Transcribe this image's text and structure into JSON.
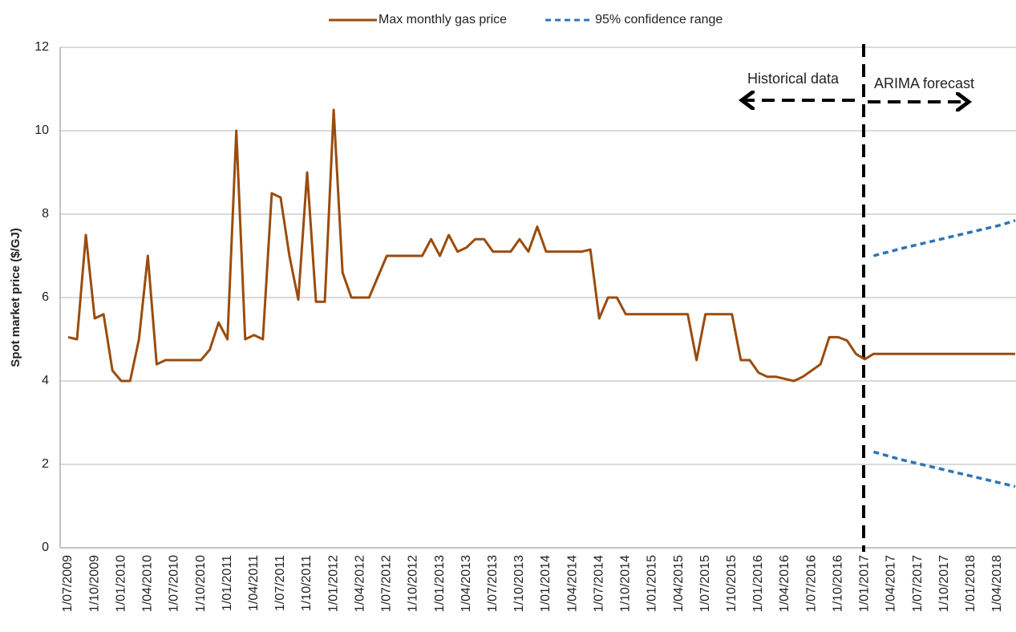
{
  "chart_data": {
    "type": "line",
    "y_label": "Spot market price ($/GJ)",
    "categories": [
      "1/07/2009",
      null,
      null,
      "1/10/2009",
      null,
      null,
      "1/01/2010",
      null,
      null,
      "1/04/2010",
      null,
      null,
      "1/07/2010",
      null,
      null,
      "1/10/2010",
      null,
      null,
      "1/01/2011",
      null,
      null,
      "1/04/2011",
      null,
      null,
      "1/07/2011",
      null,
      null,
      "1/10/2011",
      null,
      null,
      "1/01/2012",
      null,
      null,
      "1/04/2012",
      null,
      null,
      "1/07/2012",
      null,
      null,
      "1/10/2012",
      null,
      null,
      "1/01/2013",
      null,
      null,
      "1/04/2013",
      null,
      null,
      "1/07/2013",
      null,
      null,
      "1/10/2013",
      null,
      null,
      "1/01/2014",
      null,
      null,
      "1/04/2014",
      null,
      null,
      "1/07/2014",
      null,
      null,
      "1/10/2014",
      null,
      null,
      "1/01/2015",
      null,
      null,
      "1/04/2015",
      null,
      null,
      "1/07/2015",
      null,
      null,
      "1/10/2015",
      null,
      null,
      "1/01/2016",
      null,
      null,
      "1/04/2016",
      null,
      null,
      "1/07/2016",
      null,
      null,
      "1/10/2016",
      null,
      null,
      "1/01/2017",
      null,
      null,
      "1/04/2017",
      null,
      null,
      "1/07/2017",
      null,
      null,
      "1/10/2017",
      null,
      null,
      "1/01/2018",
      null,
      null,
      "1/04/2018",
      null,
      null
    ],
    "series": [
      {
        "name": "Max monthly gas price",
        "color": "#9a4c0e",
        "dashed": false,
        "values": [
          5.05,
          5.0,
          7.5,
          5.5,
          5.6,
          4.25,
          4.0,
          4.0,
          5.0,
          7.0,
          4.4,
          4.5,
          4.5,
          4.5,
          4.5,
          4.5,
          4.75,
          5.4,
          5.0,
          10.0,
          5.0,
          5.1,
          5.0,
          8.5,
          8.4,
          7.0,
          5.95,
          9.0,
          5.9,
          5.9,
          10.5,
          6.6,
          6.0,
          6.0,
          6.0,
          6.5,
          7.0,
          7.0,
          7.0,
          7.0,
          7.0,
          7.4,
          7.0,
          7.5,
          7.1,
          7.2,
          7.4,
          7.4,
          7.1,
          7.1,
          7.1,
          7.4,
          7.1,
          7.7,
          7.1,
          7.1,
          7.1,
          7.1,
          7.1,
          7.15,
          5.5,
          6.0,
          6.0,
          5.6,
          5.6,
          5.6,
          5.6,
          5.6,
          5.6,
          5.6,
          5.6,
          4.5,
          5.6,
          5.6,
          5.6,
          5.6,
          4.5,
          4.5,
          4.2,
          4.1,
          4.1,
          4.05,
          4.0,
          4.1,
          4.25,
          4.4,
          5.05,
          5.05,
          4.97,
          4.65,
          4.52,
          4.65,
          4.65,
          4.65,
          4.65,
          4.65,
          4.65,
          4.65,
          4.65,
          4.65,
          4.65,
          4.65,
          4.65,
          4.65,
          4.65,
          4.65,
          4.65,
          4.65
        ]
      },
      {
        "name": "95% confidence range",
        "color": "#2e75b6",
        "dashed": true,
        "values": [
          null,
          null,
          null,
          null,
          null,
          null,
          null,
          null,
          null,
          null,
          null,
          null,
          null,
          null,
          null,
          null,
          null,
          null,
          null,
          null,
          null,
          null,
          null,
          null,
          null,
          null,
          null,
          null,
          null,
          null,
          null,
          null,
          null,
          null,
          null,
          null,
          null,
          null,
          null,
          null,
          null,
          null,
          null,
          null,
          null,
          null,
          null,
          null,
          null,
          null,
          null,
          null,
          null,
          null,
          null,
          null,
          null,
          null,
          null,
          null,
          null,
          null,
          null,
          null,
          null,
          null,
          null,
          null,
          null,
          null,
          null,
          null,
          null,
          null,
          null,
          null,
          null,
          null,
          null,
          null,
          null,
          null,
          null,
          null,
          null,
          null,
          null,
          null,
          null,
          null,
          null,
          7.0,
          7.06,
          7.11,
          7.17,
          7.22,
          7.27,
          7.32,
          7.37,
          7.42,
          7.47,
          7.52,
          7.57,
          7.62,
          7.67,
          7.72,
          7.78,
          7.85
        ]
      },
      {
        "color": "#2e75b6",
        "dashed": true,
        "values": [
          null,
          null,
          null,
          null,
          null,
          null,
          null,
          null,
          null,
          null,
          null,
          null,
          null,
          null,
          null,
          null,
          null,
          null,
          null,
          null,
          null,
          null,
          null,
          null,
          null,
          null,
          null,
          null,
          null,
          null,
          null,
          null,
          null,
          null,
          null,
          null,
          null,
          null,
          null,
          null,
          null,
          null,
          null,
          null,
          null,
          null,
          null,
          null,
          null,
          null,
          null,
          null,
          null,
          null,
          null,
          null,
          null,
          null,
          null,
          null,
          null,
          null,
          null,
          null,
          null,
          null,
          null,
          null,
          null,
          null,
          null,
          null,
          null,
          null,
          null,
          null,
          null,
          null,
          null,
          null,
          null,
          null,
          null,
          null,
          null,
          null,
          null,
          null,
          null,
          null,
          null,
          2.3,
          2.24,
          2.18,
          2.12,
          2.07,
          2.02,
          1.97,
          1.92,
          1.87,
          1.82,
          1.77,
          1.72,
          1.67,
          1.62,
          1.57,
          1.52,
          1.47
        ]
      }
    ],
    "ylim": [
      0,
      12
    ],
    "yticks": [
      0,
      2,
      4,
      6,
      8,
      10,
      12
    ],
    "grid": true,
    "legend": "top",
    "annotations": [
      "Historical data",
      "ARIMA forecast"
    ]
  }
}
